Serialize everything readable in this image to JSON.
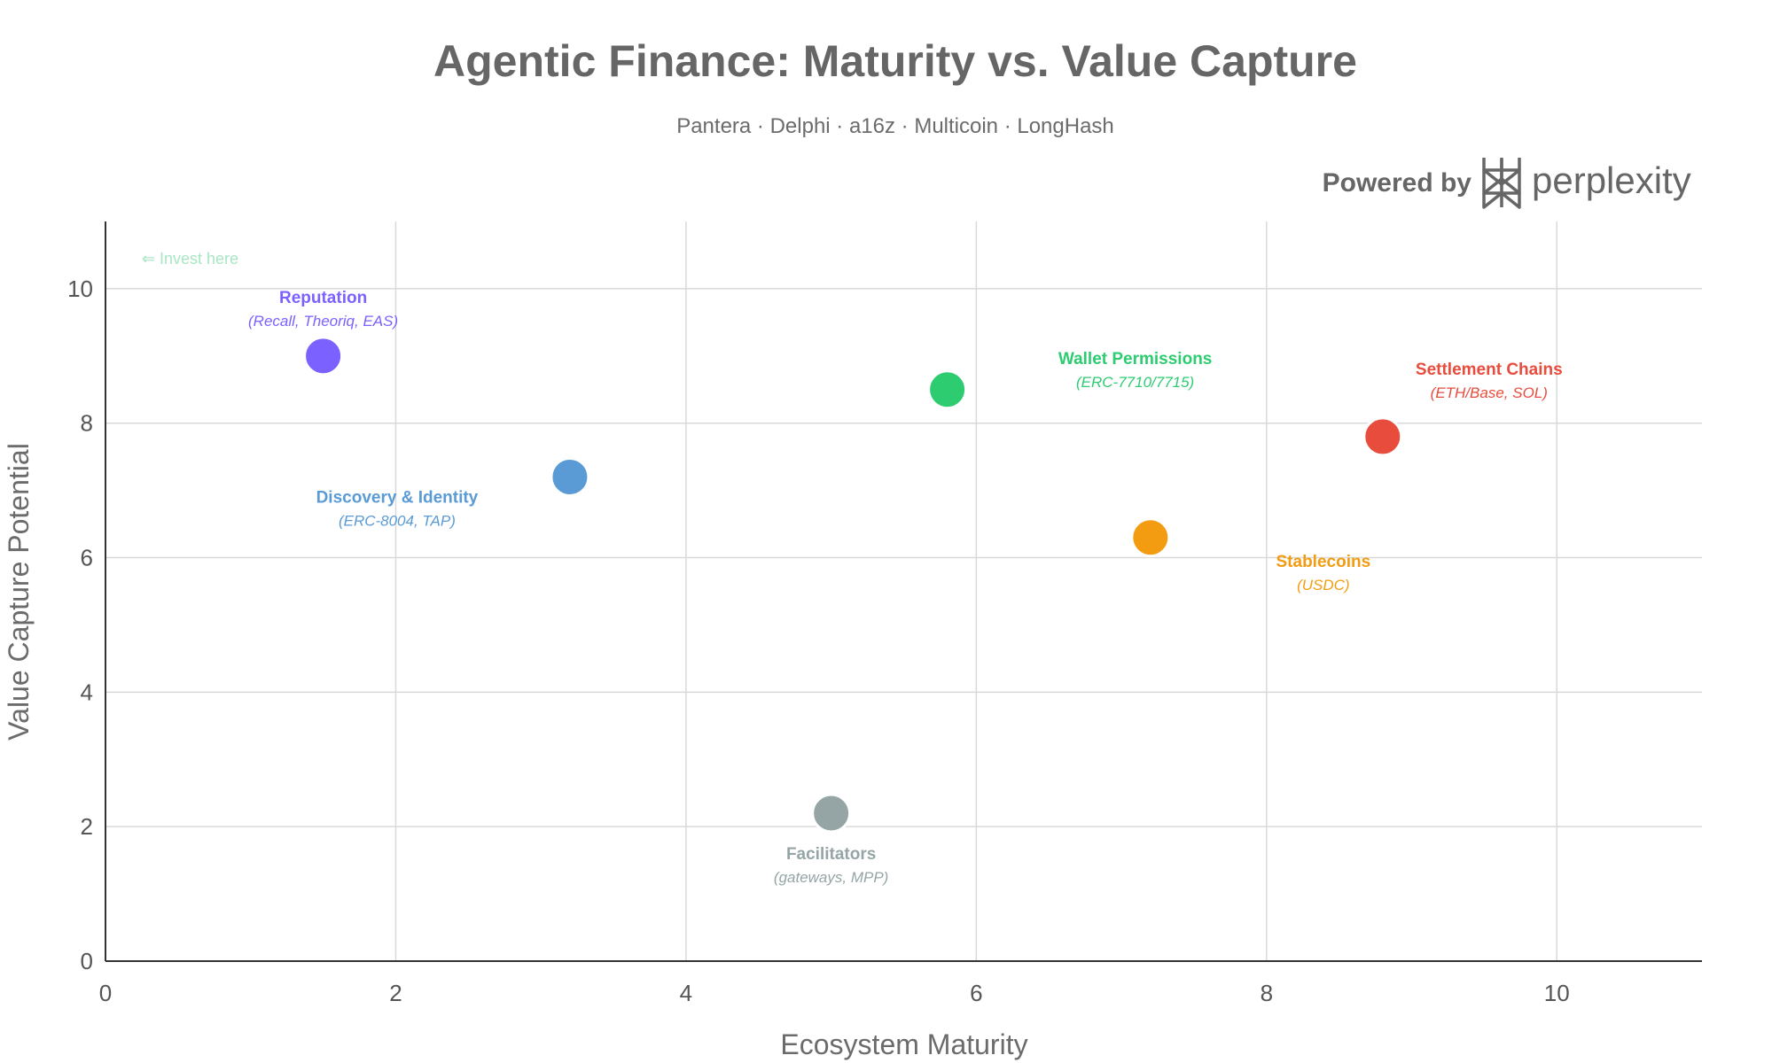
{
  "chart_data": {
    "type": "scatter",
    "title": "Agentic Finance: Maturity vs. Value Capture",
    "subtitle": "Pantera · Delphi · a16z · Multicoin · LongHash",
    "xlabel": "Ecosystem Maturity",
    "ylabel": "Value Capture Potential",
    "xlim": [
      0,
      11
    ],
    "ylim": [
      0,
      11
    ],
    "xticks": [
      0,
      2,
      4,
      6,
      8,
      10
    ],
    "yticks": [
      0,
      2,
      4,
      6,
      8,
      10
    ],
    "grid": true,
    "points": [
      {
        "name": "Reputation",
        "detail": "(Recall, Theoriq, EAS)",
        "x": 1.5,
        "y": 9.0,
        "color": "#7b61ff",
        "label_position": "above"
      },
      {
        "name": "Discovery & Identity",
        "detail": "(ERC-8004, TAP)",
        "x": 3.2,
        "y": 7.2,
        "color": "#5b9bd5",
        "label_position": "below-left"
      },
      {
        "name": "Wallet Permissions",
        "detail": "(ERC-7710/7715)",
        "x": 5.8,
        "y": 8.5,
        "color": "#2ecc71",
        "label_position": "above-right"
      },
      {
        "name": "Stablecoins",
        "detail": "(USDC)",
        "x": 7.2,
        "y": 6.3,
        "color": "#f39c12",
        "label_position": "below-right"
      },
      {
        "name": "Settlement Chains",
        "detail": "(ETH/Base, SOL)",
        "x": 8.8,
        "y": 7.8,
        "color": "#e74c3c",
        "label_position": "above-right"
      },
      {
        "name": "Facilitators",
        "detail": "(gateways, MPP)",
        "x": 5.0,
        "y": 2.2,
        "color": "#95a5a6",
        "label_position": "below"
      }
    ],
    "annotations": [
      {
        "text": "⇐ Invest here",
        "x": 0.25,
        "y": 10.45,
        "color": "#a8e6c4"
      }
    ]
  },
  "branding": {
    "powered_by": "Powered by",
    "brand_name": "perplexity"
  }
}
